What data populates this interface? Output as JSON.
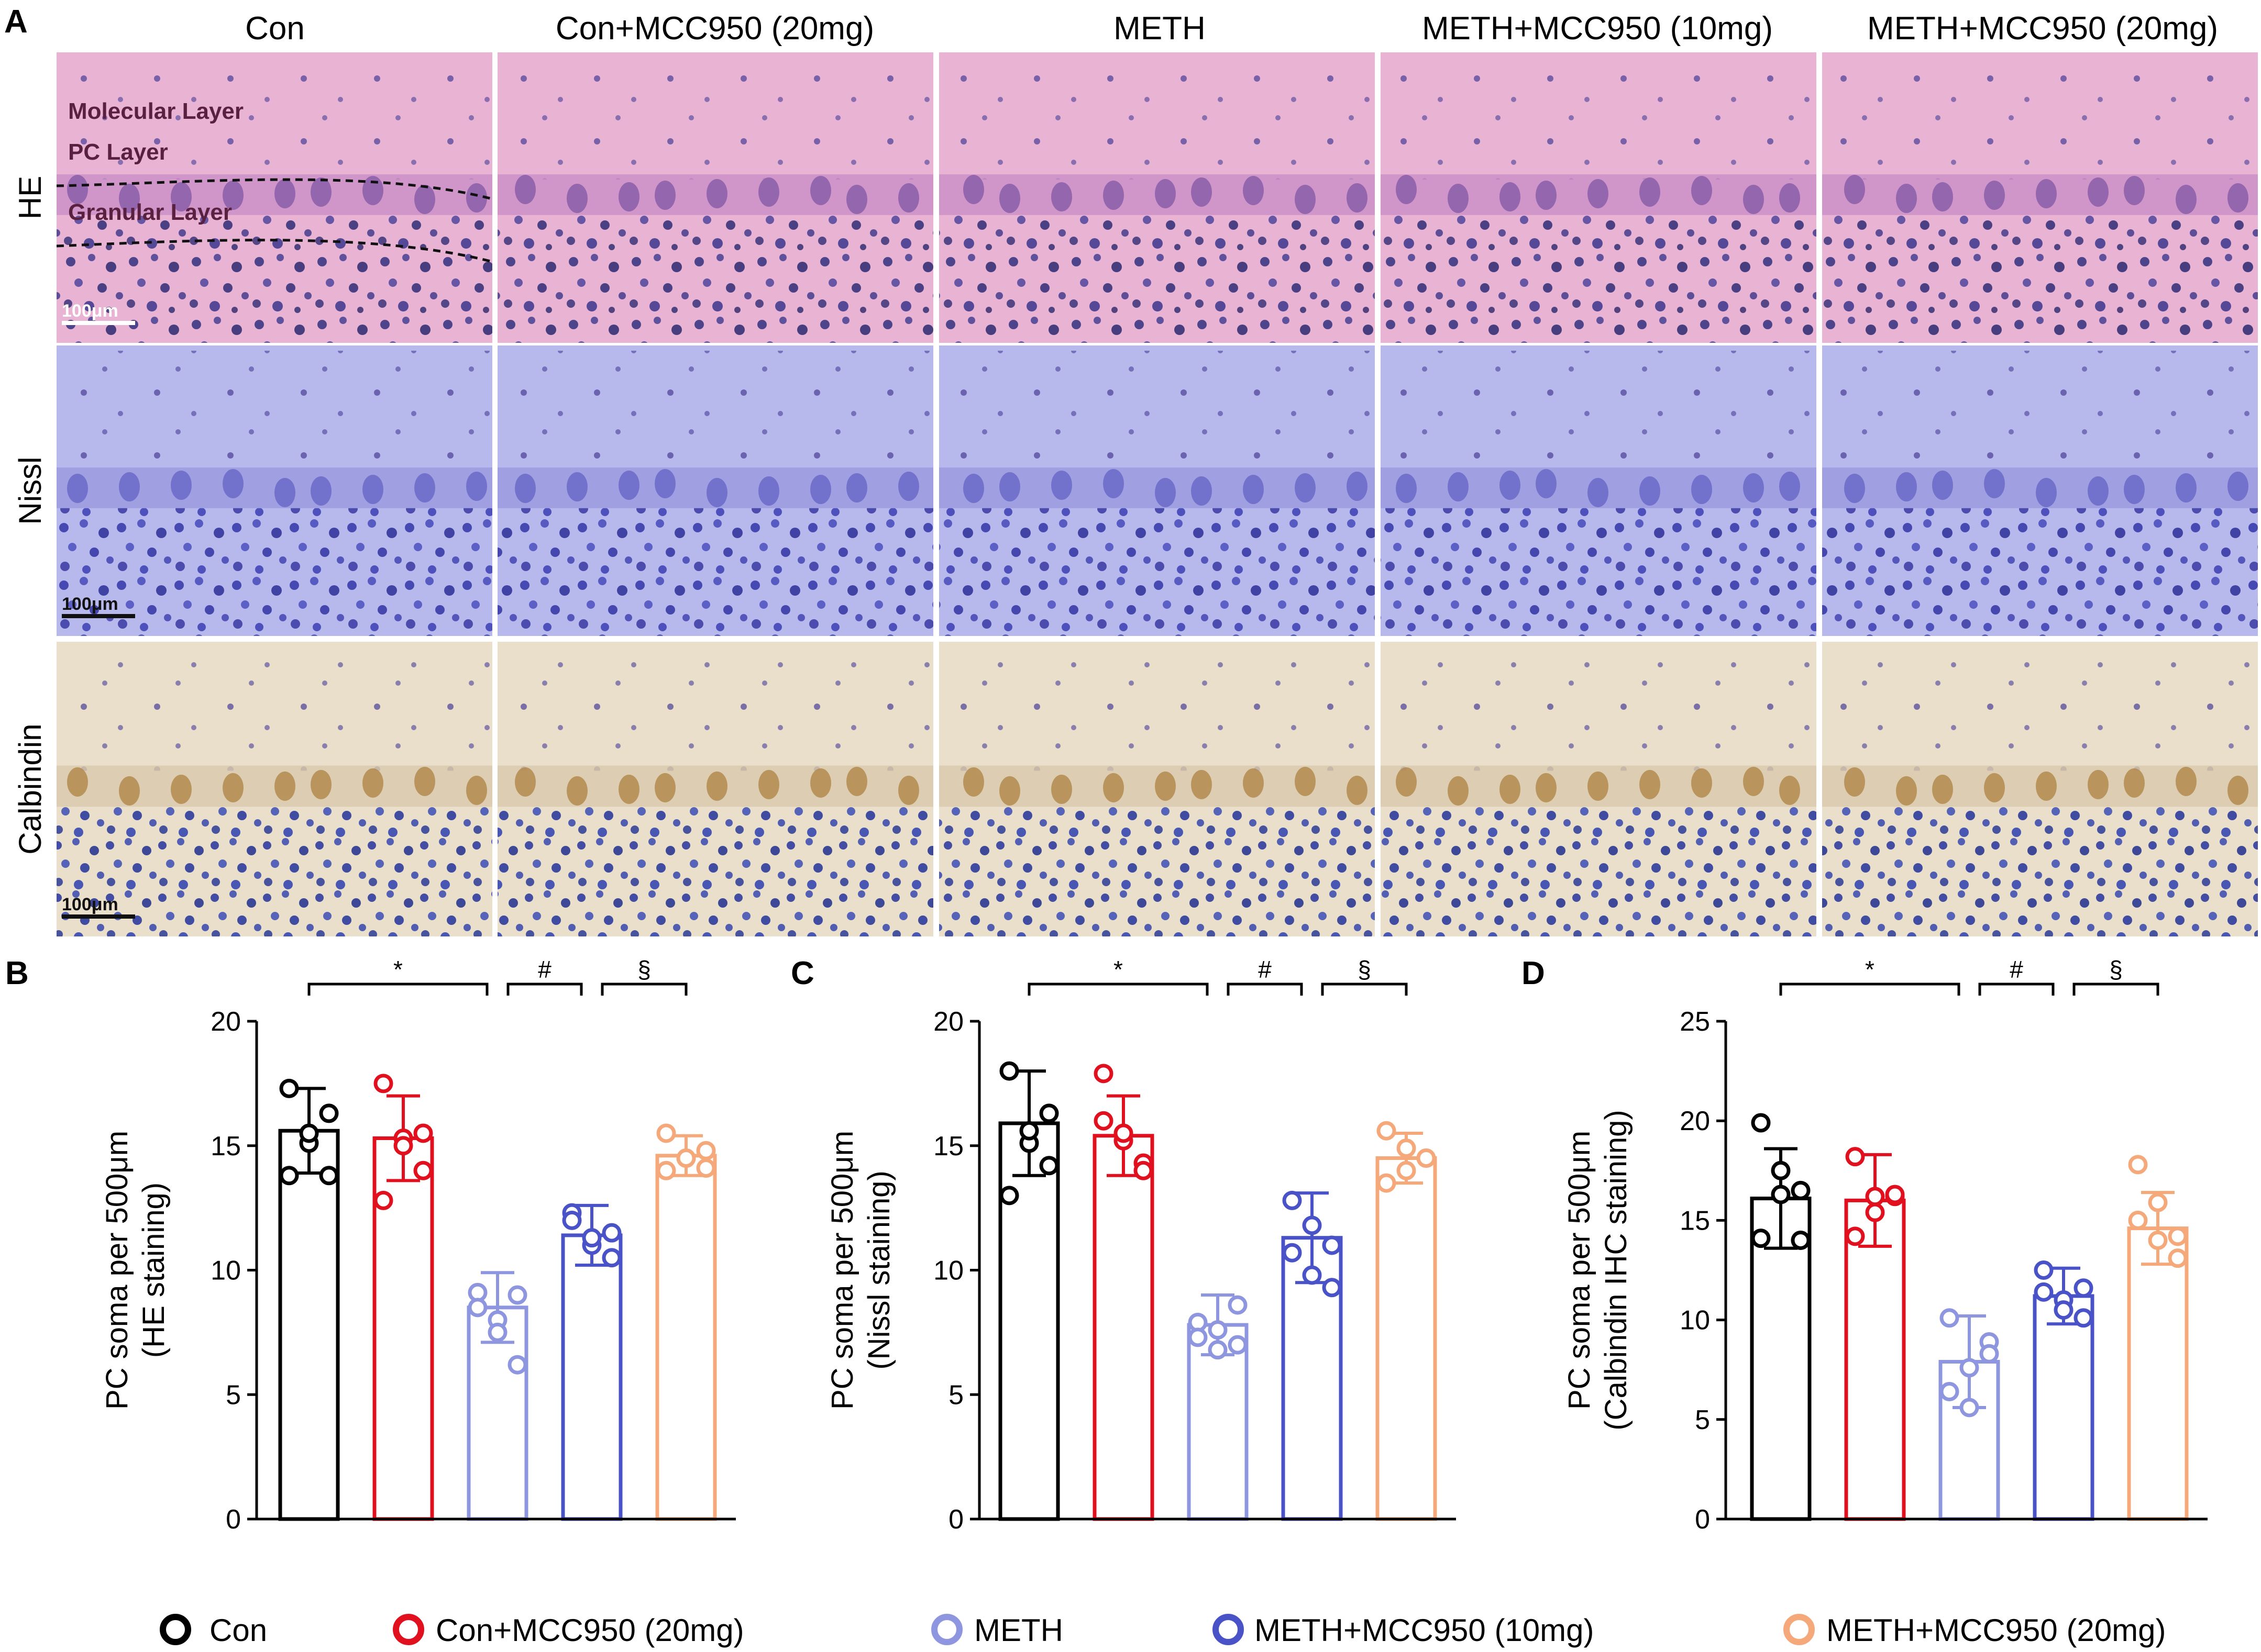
{
  "panel_a": {
    "letter": "A",
    "columns": [
      "Con",
      "Con+MCC950 (20mg)",
      "METH",
      "METH+MCC950 (10mg)",
      "METH+MCC950 (20mg)"
    ],
    "rows": [
      "HE",
      "Nissl",
      "Calbindin"
    ],
    "layer_labels": [
      "Molecular Layer",
      "PC Layer",
      "Granular Layer"
    ],
    "scale_bar": "100μm"
  },
  "colors": {
    "Con": "#000000",
    "Con+MCC950 (20mg)": "#e0101f",
    "METH": "#8e96e0",
    "METH+MCC950 (10mg)": "#4a52c8",
    "METH+MCC950 (20mg)": "#f5a87a"
  },
  "chart_data": [
    {
      "panel": "B",
      "type": "bar",
      "categories": [
        "Con",
        "Con+MCC950 (20mg)",
        "METH",
        "METH+MCC950 (10mg)",
        "METH+MCC950 (20mg)"
      ],
      "values": [
        15.6,
        15.3,
        8.5,
        11.4,
        14.6
      ],
      "sd": [
        1.7,
        1.7,
        1.4,
        1.2,
        0.8
      ],
      "points": [
        [
          13.8,
          15.1,
          16.3,
          17.3,
          15.5,
          13.8
        ],
        [
          17.5,
          15.3,
          14.0,
          12.8,
          15.0,
          15.5
        ],
        [
          9.1,
          8.0,
          6.2,
          8.5,
          7.5,
          9.0
        ],
        [
          12.3,
          11.0,
          10.5,
          12.0,
          11.3,
          11.5
        ],
        [
          15.5,
          14.5,
          14.8,
          14.0,
          14.5,
          14.1
        ]
      ],
      "ylim": [
        0,
        20
      ],
      "yticks": [
        0,
        5,
        10,
        15,
        20
      ],
      "ylabel": "PC soma per 500μm",
      "ylabel2": "(HE staining)",
      "significance": [
        "*",
        "#",
        "§"
      ]
    },
    {
      "panel": "C",
      "type": "bar",
      "categories": [
        "Con",
        "Con+MCC950 (20mg)",
        "METH",
        "METH+MCC950 (10mg)",
        "METH+MCC950 (20mg)"
      ],
      "values": [
        15.9,
        15.4,
        7.8,
        11.3,
        14.5
      ],
      "sd": [
        2.1,
        1.6,
        1.2,
        1.8,
        1.0
      ],
      "points": [
        [
          13.0,
          15.1,
          16.3,
          18.0,
          15.6,
          14.2
        ],
        [
          17.9,
          15.2,
          14.3,
          16.0,
          15.5,
          14.0
        ],
        [
          7.9,
          6.8,
          8.6,
          7.3,
          7.6,
          7.0
        ],
        [
          12.8,
          9.8,
          11.0,
          10.7,
          11.8,
          9.3
        ],
        [
          15.6,
          14.0,
          14.5,
          13.5,
          14.9,
          14.5
        ]
      ],
      "ylim": [
        0,
        20
      ],
      "yticks": [
        0,
        5,
        10,
        15,
        20
      ],
      "ylabel": "PC soma per 500μm",
      "ylabel2": "(Nissl staining)",
      "significance": [
        "*",
        "#",
        "§"
      ]
    },
    {
      "panel": "D",
      "type": "bar",
      "categories": [
        "Con",
        "Con+MCC950 (20mg)",
        "METH",
        "METH+MCC950 (10mg)",
        "METH+MCC950 (20mg)"
      ],
      "values": [
        16.1,
        16.0,
        7.9,
        11.2,
        14.6
      ],
      "sd": [
        2.5,
        2.3,
        2.3,
        1.4,
        1.8
      ],
      "points": [
        [
          19.9,
          16.3,
          14.0,
          14.1,
          17.5,
          16.5
        ],
        [
          18.2,
          15.4,
          16.2,
          14.2,
          16.2,
          16.3
        ],
        [
          10.1,
          7.6,
          8.9,
          6.4,
          5.6,
          8.3
        ],
        [
          12.5,
          11.0,
          10.1,
          11.4,
          10.5,
          11.6
        ],
        [
          17.8,
          15.9,
          13.1,
          15.0,
          14.0,
          14.2
        ]
      ],
      "ylim": [
        0,
        25
      ],
      "yticks": [
        0,
        5,
        10,
        15,
        20,
        25
      ],
      "ylabel": "PC soma per 500μm",
      "ylabel2": "(Calbindin IHC staining)",
      "significance": [
        "*",
        "#",
        "§"
      ]
    }
  ],
  "legend": [
    "Con",
    "Con+MCC950 (20mg)",
    "METH",
    "METH+MCC950 (10mg)",
    "METH+MCC950 (20mg)"
  ]
}
